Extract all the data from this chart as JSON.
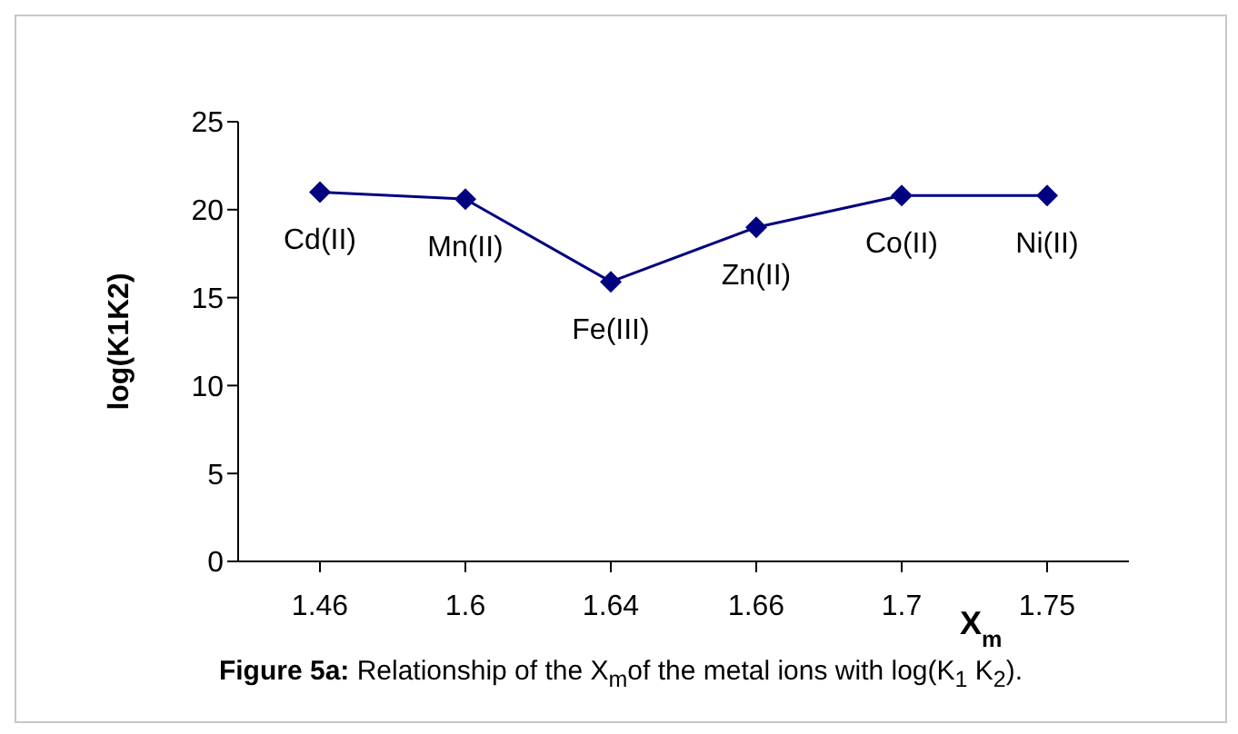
{
  "chart_data": {
    "type": "line",
    "ylabel": "log(K1K2)",
    "xlabel": "X$_{m}$",
    "categories": [
      "1.46",
      "1.6",
      "1.64",
      "1.66",
      "1.7",
      "1.75"
    ],
    "series": [
      {
        "color": "#000080",
        "values": [
          21,
          20.6,
          15.9,
          19,
          20.8,
          20.8
        ]
      }
    ],
    "ylim": [
      0,
      25
    ],
    "yticks": [
      0,
      5,
      10,
      15,
      20,
      25
    ],
    "grid": false,
    "legend": false,
    "marker": "diamond",
    "line_style": "solid",
    "annotations": [
      {
        "text": "Cd(II)",
        "x": "1.46",
        "y": 21
      },
      {
        "text": "Mn(II)",
        "x": "1.6",
        "y": 20.6
      },
      {
        "text": "Fe(III)",
        "x": "1.64",
        "y": 15.9
      },
      {
        "text": "Zn(II)",
        "x": "1.66",
        "y": 19
      },
      {
        "text": "Co(II)",
        "x": "1.7",
        "y": 20.8
      },
      {
        "text": "Ni(II)",
        "x": "1.75",
        "y": 20.8
      },
      "Figure 5a: Relationship of the X$_{m}$of the metal ions with log(K$_{1}$ K$_{2}$)."
    ]
  }
}
